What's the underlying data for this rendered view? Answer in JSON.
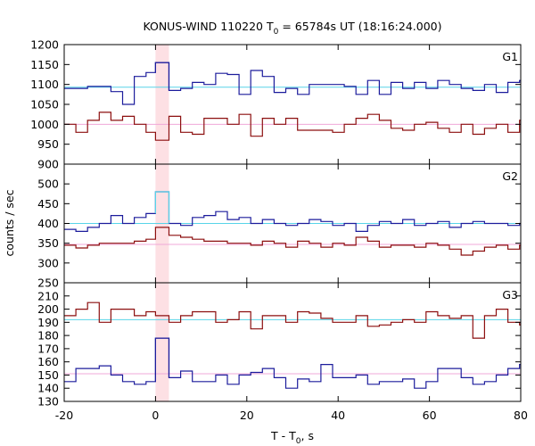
{
  "chart_data": {
    "type": "line",
    "title_prefix": "KONUS-WIND 110220 T",
    "title_sub": "0",
    "title_suffix": " = 65784s UT (18:16:24.000)",
    "xlabel_prefix": "T - T",
    "xlabel_sub": "0",
    "xlabel_suffix": ", s",
    "ylabel": "counts / sec",
    "xlim": [
      -20,
      80
    ],
    "xticks": [
      "-20",
      "0",
      "20",
      "40",
      "60",
      "80"
    ],
    "xtick_values": [
      -20,
      0,
      20,
      40,
      60,
      80
    ],
    "highlight_interval": [
      0,
      2.944
    ],
    "highlight_color": "#fde0e4",
    "x_edges": [
      -20,
      -17.44,
      -14.88,
      -12.32,
      -9.76,
      -7.2,
      -4.64,
      -2.08,
      0,
      2.944,
      5.504,
      8.064,
      10.624,
      13.184,
      15.744,
      18.304,
      20.864,
      23.424,
      25.984,
      28.544,
      31.104,
      33.664,
      36.224,
      38.784,
      41.344,
      43.904,
      46.464,
      49.024,
      51.584,
      54.144,
      56.704,
      59.264,
      61.824,
      64.384,
      66.944,
      69.504,
      72.064,
      74.624,
      77.184,
      79.744,
      80
    ],
    "panels": [
      {
        "label": "G1",
        "ylim": [
          900,
          1200
        ],
        "yticks": [
          "900",
          "950",
          "1000",
          "1050",
          "1100",
          "1150",
          "1200"
        ],
        "ytick_values": [
          900,
          950,
          1000,
          1050,
          1100,
          1150,
          1200
        ],
        "background_level": 1000,
        "signal_level": 1093,
        "series": [
          {
            "color": "#1c1c9c",
            "bg_color": "#58d4e8",
            "values": [
              1090,
              1090,
              1095,
              1095,
              1082,
              1050,
              1120,
              1130,
              1155,
              1085,
              1090,
              1105,
              1100,
              1128,
              1125,
              1075,
              1135,
              1120,
              1080,
              1090,
              1075,
              1100,
              1100,
              1100,
              1095,
              1075,
              1110,
              1075,
              1105,
              1090,
              1105,
              1090,
              1110,
              1100,
              1090,
              1085,
              1100,
              1080,
              1105,
              1110
            ]
          },
          {
            "color": "#8c0f0f",
            "bg_color": "#f0a8d8",
            "values": [
              1000,
              980,
              1010,
              1030,
              1010,
              1020,
              1000,
              980,
              960,
              1020,
              980,
              975,
              1015,
              1015,
              1000,
              1025,
              970,
              1015,
              1000,
              1015,
              985,
              985,
              985,
              980,
              1000,
              1015,
              1025,
              1010,
              990,
              985,
              1000,
              1005,
              990,
              980,
              1000,
              975,
              990,
              1000,
              980,
              1010
            ]
          }
        ]
      },
      {
        "label": "G2",
        "ylim": [
          250,
          550
        ],
        "yticks": [
          "250",
          "300",
          "350",
          "400",
          "450",
          "500"
        ],
        "ytick_values": [
          250,
          300,
          350,
          400,
          450,
          500
        ],
        "background_level": 347,
        "signal_level": 400,
        "series": [
          {
            "color": "#1c1c9c",
            "bg_color": "#58d4e8",
            "values": [
              385,
              380,
              390,
              400,
              420,
              400,
              415,
              425,
              480,
              400,
              395,
              415,
              420,
              430,
              410,
              415,
              400,
              410,
              400,
              395,
              400,
              410,
              405,
              395,
              400,
              380,
              395,
              405,
              400,
              410,
              395,
              400,
              405,
              390,
              400,
              405,
              400,
              400,
              395,
              400
            ]
          },
          {
            "color": "#8c0f0f",
            "bg_color": "#f0a8d8",
            "values": [
              345,
              338,
              345,
              350,
              350,
              350,
              355,
              360,
              390,
              370,
              365,
              360,
              355,
              355,
              350,
              350,
              345,
              355,
              350,
              340,
              355,
              350,
              340,
              350,
              345,
              365,
              355,
              340,
              345,
              345,
              340,
              350,
              345,
              335,
              320,
              330,
              340,
              345,
              335,
              345
            ]
          }
        ]
      },
      {
        "label": "G3",
        "ylim": [
          130,
          220
        ],
        "yticks": [
          "130",
          "140",
          "150",
          "160",
          "170",
          "180",
          "190",
          "200",
          "210"
        ],
        "ytick_values": [
          130,
          140,
          150,
          160,
          170,
          180,
          190,
          200,
          210
        ],
        "background_level": 151,
        "signal_level": 192,
        "series": [
          {
            "color": "#1c1c9c",
            "bg_color": "#58d4e8",
            "values": [
              145,
              155,
              155,
              157,
              150,
              145,
              143,
              145,
              178,
              148,
              153,
              145,
              145,
              150,
              143,
              150,
              152,
              155,
              148,
              140,
              147,
              145,
              158,
              148,
              148,
              150,
              143,
              145,
              145,
              147,
              140,
              145,
              155,
              155,
              148,
              143,
              145,
              150,
              155,
              158
            ]
          },
          {
            "color": "#8c0f0f",
            "bg_color": "#f0a8d8",
            "values": [
              195,
              200,
              205,
              190,
              200,
              200,
              195,
              198,
              195,
              190,
              195,
              198,
              198,
              190,
              192,
              198,
              185,
              195,
              195,
              190,
              198,
              197,
              193,
              190,
              190,
              195,
              187,
              188,
              190,
              192,
              190,
              198,
              195,
              193,
              195,
              178,
              195,
              200,
              190,
              188
            ]
          }
        ]
      }
    ]
  }
}
